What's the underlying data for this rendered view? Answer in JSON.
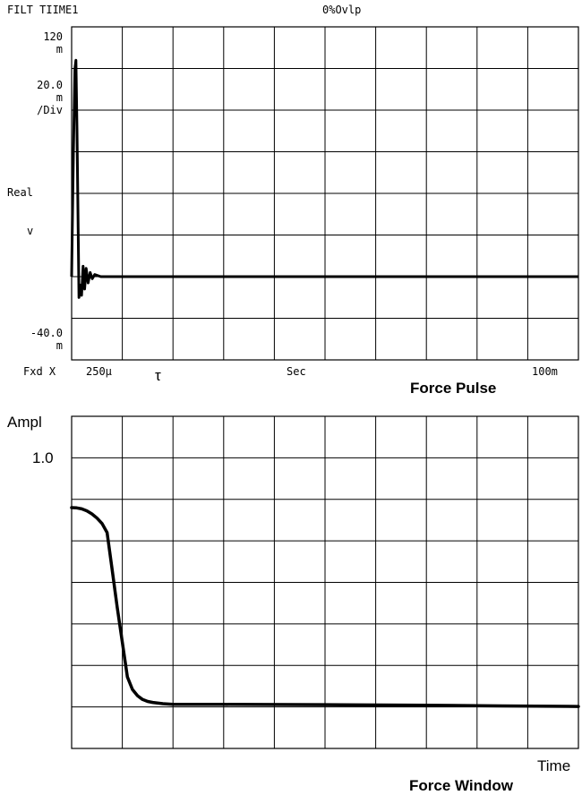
{
  "header": {
    "left": "FILT TIIME1",
    "center": "0%Ovlp"
  },
  "top_chart": {
    "y_labels": {
      "top_value": "120",
      "top_unit": "m",
      "scale_value": "20.0",
      "scale_unit": "m",
      "scale_per": "/Div",
      "name": "Real",
      "unit": "v",
      "bottom_value": "-40.0",
      "bottom_unit": "m"
    },
    "x_labels": {
      "mode": "Fxd X",
      "start": "250µ",
      "tau": "τ",
      "unit": "Sec",
      "end": "100m"
    },
    "caption": "Force Pulse"
  },
  "bottom_chart": {
    "y_label": "Ampl",
    "y_tick": "1.0",
    "x_label": "Time",
    "caption": "Force Window"
  },
  "chart_data": [
    {
      "type": "line",
      "title": "Force Pulse",
      "xlabel": "Sec",
      "ylabel": "Real",
      "ylim": [
        -0.04,
        0.12
      ],
      "xlim": [
        0.00025,
        0.1
      ],
      "grid": true,
      "series": [
        {
          "x": [
            0.00025,
            0.0003,
            0.0006,
            0.0009,
            0.0011,
            0.0013,
            0.0015,
            0.0017,
            0.0019,
            0.0022,
            0.0025,
            0.0028,
            0.0031,
            0.0035,
            0.0039,
            0.0043,
            0.0048,
            0.006,
            0.01,
            0.02,
            0.05,
            0.1
          ],
          "y": [
            0.0,
            0.01,
            0.06,
            0.1,
            0.104,
            0.07,
            0.03,
            -0.01,
            -0.004,
            -0.009,
            0.005,
            -0.006,
            0.004,
            -0.003,
            0.002,
            -0.001,
            0.001,
            0.0,
            0.0,
            0.0,
            0.0,
            0.0
          ]
        }
      ]
    },
    {
      "type": "line",
      "title": "Force Window",
      "xlabel": "Time",
      "ylabel": "Ampl",
      "ylim": [
        0,
        1.0
      ],
      "grid": true,
      "series": [
        {
          "x": [
            0.0,
            0.01,
            0.02,
            0.03,
            0.04,
            0.05,
            0.06,
            0.07,
            0.08,
            0.09,
            0.1,
            0.11,
            0.12,
            0.13,
            0.14,
            0.15,
            0.16,
            0.18,
            0.2,
            0.25,
            0.3,
            0.5,
            0.7,
            0.85,
            1.0
          ],
          "y": [
            0.8,
            0.799,
            0.795,
            0.787,
            0.775,
            0.758,
            0.736,
            0.7,
            0.55,
            0.4,
            0.26,
            0.12,
            0.07,
            0.045,
            0.03,
            0.022,
            0.018,
            0.013,
            0.01,
            0.01,
            0.01,
            0.009,
            0.007,
            0.004,
            0.002
          ]
        }
      ]
    }
  ]
}
